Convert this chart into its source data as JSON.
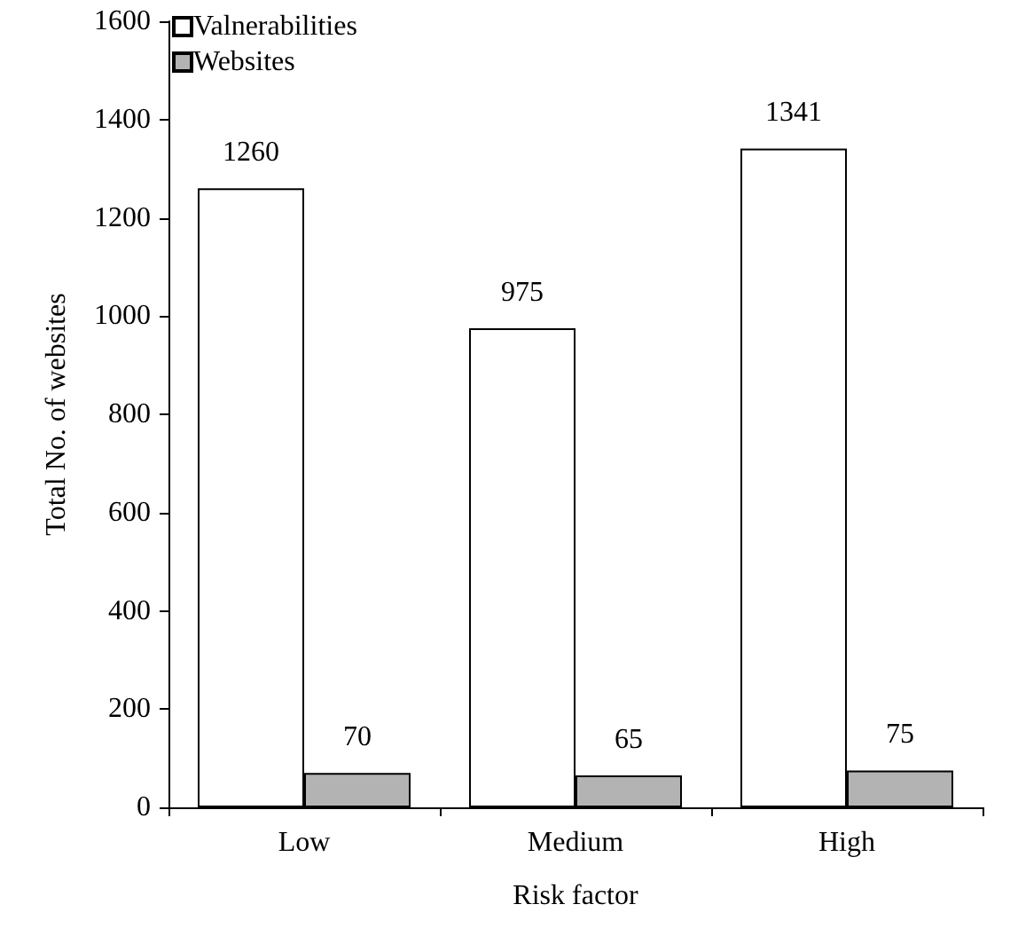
{
  "chart_data": {
    "type": "bar",
    "xlabel": "Risk factor",
    "ylabel": "Total No. of websites",
    "categories": [
      "Low",
      "Medium",
      "High"
    ],
    "series": [
      {
        "name": "Valnerabilities",
        "color": "#ffffff",
        "values": [
          1260,
          975,
          1341
        ]
      },
      {
        "name": "Websites",
        "color": "#b3b3b3",
        "values": [
          70,
          65,
          75
        ]
      }
    ],
    "ylim": [
      0,
      1600
    ],
    "yticks": [
      0,
      200,
      400,
      600,
      800,
      1000,
      1200,
      1400,
      1600
    ],
    "data_labels": true,
    "grid": false,
    "legend": "top left"
  }
}
